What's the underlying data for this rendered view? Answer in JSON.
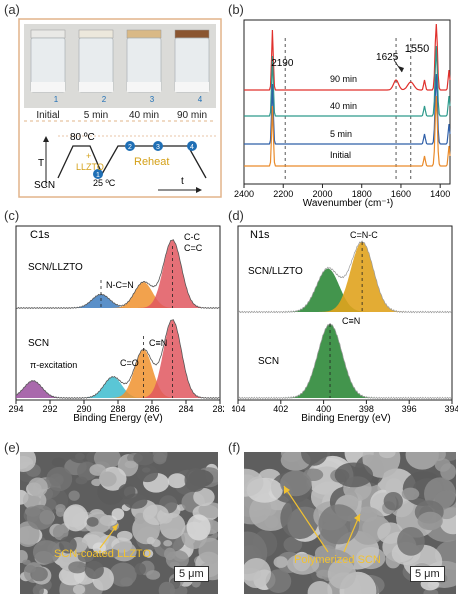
{
  "panel_labels": {
    "a": "(a)",
    "b": "(b)",
    "c": "(c)",
    "d": "(d)",
    "e": "(e)",
    "f": "(f)"
  },
  "panel_a": {
    "vials": [
      {
        "num": "1",
        "label": "Initial",
        "top_color": "#e9e9e6"
      },
      {
        "num": "2",
        "label": "5 min",
        "top_color": "#ece8dc"
      },
      {
        "num": "3",
        "label": "40 min",
        "top_color": "#d9b986"
      },
      {
        "num": "4",
        "label": "90 min",
        "top_color": "#8a5530"
      }
    ],
    "schematic": {
      "temp_high": "80 ºC",
      "additive": "+\nLLZTO",
      "additive_line1": "+",
      "additive_line2": "LLZTO",
      "temp_low": "25 ºC",
      "start": "SCN",
      "reheat": "Reheat",
      "y_axis": "T",
      "x_axis": "t",
      "markers": [
        "1",
        "2",
        "3",
        "4"
      ]
    },
    "colors": {
      "border": "#e2b48a",
      "marker": "#1f6fb5",
      "additive": "#d4a017",
      "reheat": "#d4a017"
    }
  },
  "panel_b": {
    "xlabel": "Wavenumber (cm⁻¹)",
    "xticks": [
      "2400",
      "2200",
      "2000",
      "1800",
      "1600",
      "1400"
    ],
    "annotations": [
      "2190",
      "1625",
      "1550"
    ],
    "series_labels": [
      "90 min",
      "40 min",
      "5 min",
      "Initial"
    ],
    "colors": [
      "#e0302c",
      "#2e9a8c",
      "#2f5fa8",
      "#e98a2a"
    ]
  },
  "panel_c": {
    "xlabel": "Binding Energy (eV)",
    "xticks": [
      "294",
      "292",
      "290",
      "288",
      "286",
      "284",
      "282"
    ],
    "title": "C1s",
    "top_label": "SCN/LLZTO",
    "bottom_label": "SCN",
    "peak_labels_top": [
      "N-C=N",
      "C-C",
      "C=C"
    ],
    "peak_labels_bottom": [
      "π-excitation",
      "C=O",
      "C≡N"
    ]
  },
  "panel_d": {
    "xlabel": "Binding Energy (eV)",
    "xticks": [
      "404",
      "402",
      "400",
      "398",
      "396",
      "394"
    ],
    "title": "N1s",
    "top_label": "SCN/LLZTO",
    "bottom_label": "SCN",
    "peak_label_top": "C=N-C",
    "peak_label_bottom": "C≡N"
  },
  "panel_e": {
    "label": "SCN-coated LLZTO",
    "scale": "5 μm"
  },
  "panel_f": {
    "label": "Polymerized SCN",
    "scale": "5 μm"
  },
  "chart_data": [
    {
      "type": "line",
      "xlabel": "Wavenumber (cm⁻¹)",
      "xlim": [
        2400,
        1350
      ],
      "series": [
        {
          "name": "90 min",
          "peaks_cm-1": [
            2255,
            1625,
            1550,
            1420,
            1360
          ]
        },
        {
          "name": "40 min",
          "peaks_cm-1": [
            2255,
            1420,
            1360
          ]
        },
        {
          "name": "5 min",
          "peaks_cm-1": [
            2255,
            1420,
            1360
          ]
        },
        {
          "name": "Initial",
          "peaks_cm-1": [
            2255,
            1420,
            1360
          ]
        }
      ],
      "reference_lines_cm-1": [
        2190,
        1625,
        1550
      ]
    },
    {
      "type": "line",
      "title": "C1s",
      "xlabel": "Binding Energy (eV)",
      "xlim": [
        294,
        282
      ],
      "series": [
        {
          "name": "SCN/LLZTO",
          "components_eV": [
            {
              "label": "N-C=N",
              "center": 289.0,
              "height": 0.2
            },
            {
              "label": "C≡N",
              "center": 286.5,
              "height": 0.38
            },
            {
              "label": "C-C/C=C",
              "center": 284.8,
              "height": 1.0
            }
          ]
        },
        {
          "name": "SCN",
          "components_eV": [
            {
              "label": "π-excitation",
              "center": 293.0,
              "height": 0.22
            },
            {
              "label": "C=O",
              "center": 288.3,
              "height": 0.27
            },
            {
              "label": "C≡N",
              "center": 286.5,
              "height": 0.62
            },
            {
              "label": "C-C",
              "center": 284.8,
              "height": 1.0
            }
          ]
        }
      ]
    },
    {
      "type": "line",
      "title": "N1s",
      "xlabel": "Binding Energy (eV)",
      "xlim": [
        404,
        394
      ],
      "series": [
        {
          "name": "SCN/LLZTO",
          "components_eV": [
            {
              "label": "",
              "center": 399.8,
              "height": 0.62
            },
            {
              "label": "C=N-C",
              "center": 398.2,
              "height": 1.0
            }
          ]
        },
        {
          "name": "SCN",
          "components_eV": [
            {
              "label": "C≡N",
              "center": 399.7,
              "height": 1.0
            }
          ]
        }
      ]
    }
  ]
}
